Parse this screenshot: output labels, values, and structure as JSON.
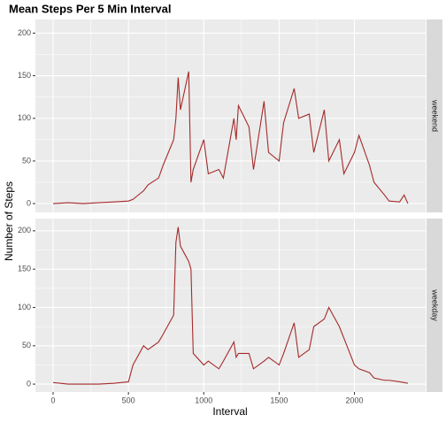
{
  "chart_data": {
    "type": "line",
    "title": "Mean Steps Per 5 Min Interval",
    "xlabel": "Interval",
    "ylabel": "Number of Steps",
    "x": [
      0,
      100,
      200,
      300,
      400,
      500,
      530,
      600,
      630,
      700,
      730,
      800,
      815,
      830,
      845,
      900,
      915,
      930,
      1000,
      1030,
      1100,
      1130,
      1200,
      1215,
      1230,
      1300,
      1330,
      1400,
      1430,
      1500,
      1530,
      1600,
      1630,
      1700,
      1730,
      1800,
      1830,
      1900,
      1930,
      2000,
      2030,
      2100,
      2130,
      2200,
      2230,
      2300,
      2330,
      2355
    ],
    "series": [
      {
        "name": "weekend",
        "color": "#a52a2a",
        "values": [
          0,
          1,
          0,
          1,
          2,
          3,
          5,
          15,
          22,
          30,
          45,
          75,
          100,
          148,
          110,
          155,
          25,
          40,
          75,
          35,
          40,
          30,
          100,
          75,
          115,
          90,
          40,
          120,
          60,
          50,
          95,
          135,
          100,
          105,
          60,
          110,
          50,
          75,
          35,
          60,
          80,
          45,
          25,
          10,
          3,
          2,
          10,
          0
        ]
      },
      {
        "name": "weekday",
        "color": "#a52a2a",
        "values": [
          2,
          0,
          0,
          0,
          1,
          3,
          25,
          50,
          45,
          55,
          65,
          90,
          185,
          205,
          180,
          160,
          150,
          40,
          25,
          30,
          20,
          30,
          55,
          35,
          40,
          40,
          20,
          30,
          35,
          25,
          40,
          80,
          35,
          45,
          75,
          85,
          100,
          75,
          60,
          25,
          20,
          15,
          8,
          5,
          5,
          3,
          2,
          1
        ]
      }
    ],
    "xlim": [
      -117.75,
      2472.75
    ],
    "ylim": [
      -10.3,
      216
    ],
    "xticks": [
      0,
      500,
      1000,
      1500,
      2000
    ],
    "yticks": [
      0,
      50,
      100,
      150,
      200
    ],
    "grid": true
  }
}
